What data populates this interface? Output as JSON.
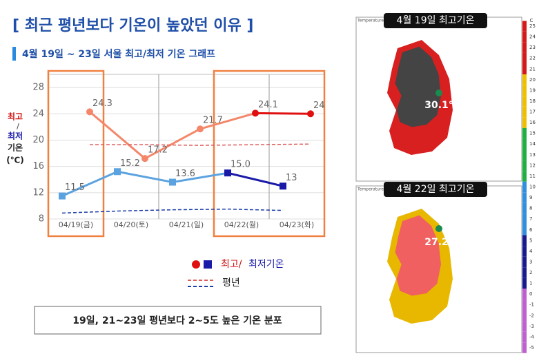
{
  "title": "[ 최근 평년보다 기온이 높았던 이유 ]",
  "chart_data": {
    "type": "line",
    "subtitle": "4월 19일 ~ 23일 서울 최고/최저 기온 그래프",
    "y_label": {
      "max": "최고",
      "slash": "/",
      "min": "최저",
      "unit1": "기온",
      "unit2": "(℃)"
    },
    "categories": [
      "04/19(금)",
      "04/20(토)",
      "04/21(일)",
      "04/22(월)",
      "04/23(화)"
    ],
    "ylim": [
      8,
      30
    ],
    "yticks": [
      8,
      12,
      16,
      20,
      24,
      28
    ],
    "grid": true,
    "highlight_ranges": [
      [
        0,
        0
      ],
      [
        3,
        4
      ]
    ],
    "series": [
      {
        "name": "최고",
        "color": "#f4876a",
        "highlight_color": "#e01010",
        "highlight_from": 3,
        "values": [
          24.3,
          17.2,
          21.7,
          24.1,
          24
        ],
        "value_labels": [
          "24.3",
          "17.2",
          "21.7",
          "24.1",
          "24"
        ]
      },
      {
        "name": "최저",
        "color": "#5ba3e0",
        "highlight_color": "#1a1aa8",
        "highlight_from": 3,
        "values": [
          11.5,
          15.2,
          13.6,
          15,
          13
        ],
        "value_labels": [
          "11.5",
          "15.2",
          "13.6",
          "15.0",
          "13"
        ]
      },
      {
        "name": "평년",
        "color": "#e05a5a",
        "dashed": true,
        "values": [
          19.3,
          19.3,
          19.2,
          19.3,
          19.4
        ]
      },
      {
        "name": "평년",
        "color": "#1a3aa8",
        "dashed": true,
        "values": [
          8.9,
          9.2,
          9.4,
          9.5,
          9.3
        ]
      }
    ],
    "legend": {
      "max": "최고/",
      "min": "최저기온",
      "normal": "평년"
    },
    "note": "19일, 21~23일 평년보다 2~5도 높은 기온 분포"
  },
  "maps": [
    {
      "title": "4월 19일 최고기온",
      "value": "30.1℃"
    },
    {
      "title": "4월 22일 최고기온",
      "value": "27.2℃"
    }
  ],
  "scale": {
    "unit": "C",
    "source": "Temperature",
    "labels": [
      25,
      24,
      23,
      22,
      21,
      20,
      19,
      18,
      17,
      16,
      15,
      14,
      13,
      12,
      11,
      10,
      9,
      8,
      7,
      6,
      5,
      4,
      3,
      2,
      1,
      0,
      -1,
      -2,
      -3,
      -4,
      -5
    ]
  }
}
